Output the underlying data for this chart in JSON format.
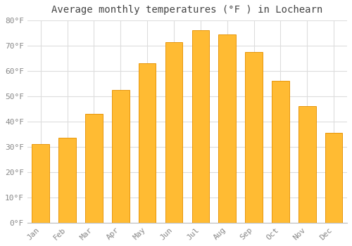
{
  "title": "Average monthly temperatures (°F ) in Lochearn",
  "months": [
    "Jan",
    "Feb",
    "Mar",
    "Apr",
    "May",
    "Jun",
    "Jul",
    "Aug",
    "Sep",
    "Oct",
    "Nov",
    "Dec"
  ],
  "values": [
    31,
    33.5,
    43,
    52.5,
    63,
    71.5,
    76,
    74.5,
    67.5,
    56,
    46,
    35.5
  ],
  "bar_color": "#FFBB33",
  "bar_edge_color": "#E8960A",
  "background_color": "#ffffff",
  "grid_color": "#dddddd",
  "ylim": [
    0,
    80
  ],
  "yticks": [
    0,
    10,
    20,
    30,
    40,
    50,
    60,
    70,
    80
  ],
  "title_fontsize": 10,
  "tick_fontsize": 8,
  "tick_color": "#888888",
  "title_color": "#444444"
}
